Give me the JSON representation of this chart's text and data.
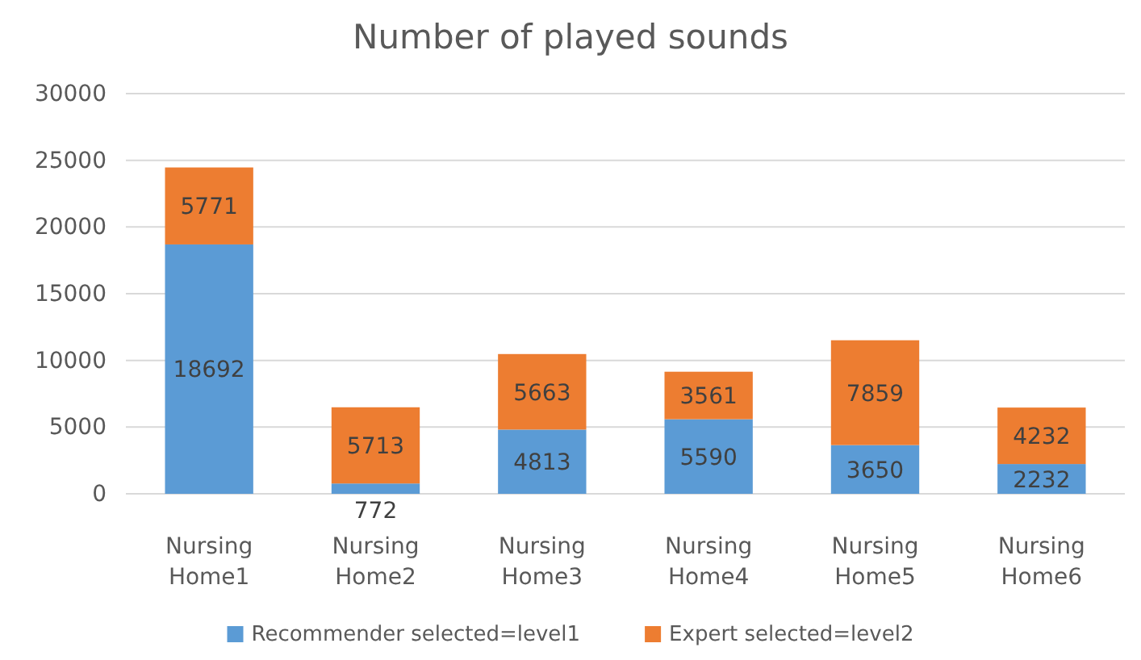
{
  "chart_data": {
    "type": "bar",
    "title": "Number of played sounds",
    "categories": [
      "Nursing Home1",
      "Nursing Home2",
      "Nursing Home3",
      "Nursing Home4",
      "Nursing Home5",
      "Nursing Home6"
    ],
    "series": [
      {
        "name": "Recommender selected=level1",
        "color": "#5b9bd5",
        "values": [
          18692,
          772,
          4813,
          5590,
          3650,
          2232
        ]
      },
      {
        "name": "Expert selected=level2",
        "color": "#ed7d31",
        "values": [
          5771,
          5713,
          5663,
          3561,
          7859,
          4232
        ]
      }
    ],
    "stacked": true,
    "data_labels": true,
    "ylim": [
      0,
      30000
    ],
    "yticks": [
      0,
      5000,
      10000,
      15000,
      20000,
      25000,
      30000
    ],
    "grid": "y",
    "legend": "bottom"
  }
}
